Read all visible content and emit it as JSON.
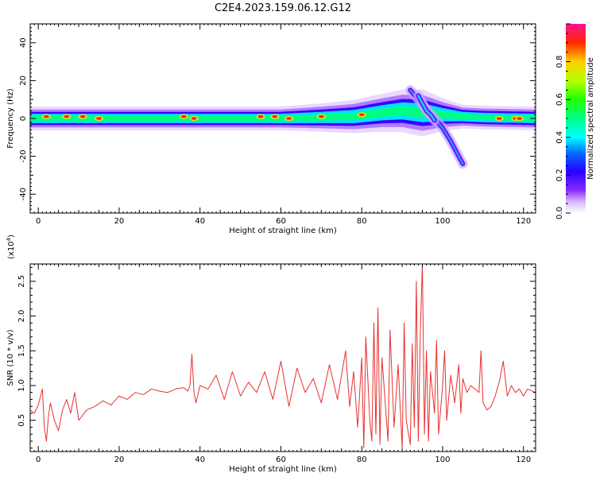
{
  "figure": {
    "title": "C2E4.2023.159.06.12.G12"
  },
  "chart_data": [
    {
      "type": "heatmap",
      "xlabel": "Height of straight line (km)",
      "ylabel": "Frequency (Hz)",
      "xlim": [
        -2,
        123
      ],
      "ylim": [
        -50,
        50
      ],
      "xticks": [
        "0",
        "20",
        "40",
        "60",
        "80",
        "100",
        "120"
      ],
      "yticks": [
        "-40",
        "-20",
        "0",
        "20",
        "40"
      ],
      "colorbar": {
        "label": "Normalized spectral amplitude",
        "range": [
          0,
          1
        ],
        "ticks": [
          "0.0",
          "0.2",
          "0.4",
          "0.6",
          "0.8"
        ]
      },
      "ridge": [
        {
          "x": -1,
          "f": 0,
          "w": 5
        },
        {
          "x": 20,
          "f": 0,
          "w": 5
        },
        {
          "x": 40,
          "f": 0,
          "w": 5
        },
        {
          "x": 60,
          "f": 0,
          "w": 5
        },
        {
          "x": 70,
          "f": 0.5,
          "w": 6
        },
        {
          "x": 78,
          "f": 1,
          "w": 7
        },
        {
          "x": 85,
          "f": 3,
          "w": 8
        },
        {
          "x": 90,
          "f": 4,
          "w": 9
        },
        {
          "x": 95,
          "f": 3,
          "w": 10
        },
        {
          "x": 100,
          "f": 2,
          "w": 7
        },
        {
          "x": 105,
          "f": 1,
          "w": 5
        },
        {
          "x": 110,
          "f": 0.5,
          "w": 5
        },
        {
          "x": 123,
          "f": 0,
          "w": 5
        }
      ],
      "branches": [
        {
          "points": [
            [
              92,
              15
            ],
            [
              94,
              10
            ],
            [
              96,
              5
            ],
            [
              98,
              0
            ],
            [
              100,
              -5
            ],
            [
              102,
              -12
            ],
            [
              104,
              -20
            ],
            [
              105,
              -24
            ]
          ]
        },
        {
          "points": [
            [
              94,
              12
            ],
            [
              95,
              8
            ],
            [
              96,
              4
            ],
            [
              97,
              2
            ],
            [
              98,
              -1
            ]
          ]
        }
      ],
      "hotspots": [
        {
          "x": 2,
          "f": 1
        },
        {
          "x": 7,
          "f": 1
        },
        {
          "x": 11,
          "f": 1
        },
        {
          "x": 15,
          "f": 0
        },
        {
          "x": 36,
          "f": 1
        },
        {
          "x": 38.5,
          "f": 0
        },
        {
          "x": 55,
          "f": 1
        },
        {
          "x": 58.5,
          "f": 1
        },
        {
          "x": 62,
          "f": 0
        },
        {
          "x": 70,
          "f": 1
        },
        {
          "x": 80,
          "f": 2
        },
        {
          "x": 114,
          "f": 0
        },
        {
          "x": 118,
          "f": 0
        },
        {
          "x": 119,
          "f": 0
        }
      ]
    },
    {
      "type": "line",
      "xlabel": "Height of straight line (km)",
      "ylabel": "SNR (10 * v/v)",
      "multiplier": "(x10",
      "multiplier_exp": "4",
      "multiplier_close": ")",
      "xlim": [
        -2,
        123
      ],
      "ylim": [
        0.05,
        2.75
      ],
      "xticks": [
        "0",
        "20",
        "40",
        "60",
        "80",
        "100",
        "120"
      ],
      "yticks": [
        "0.5",
        "1.0",
        "1.5",
        "2.0",
        "2.5"
      ],
      "series": [
        {
          "color": "#e8302f",
          "x": [
            -2,
            -1,
            0,
            1,
            1.5,
            2,
            2.5,
            3,
            4,
            5,
            6,
            7,
            8,
            9,
            10,
            12,
            14,
            16,
            18,
            20,
            22,
            24,
            26,
            28,
            30,
            32,
            34,
            36,
            37,
            37.5,
            38,
            38.5,
            39,
            40,
            42,
            44,
            46,
            48,
            50,
            52,
            54,
            56,
            58,
            60,
            62,
            64,
            66,
            68,
            70,
            72,
            74,
            76,
            77,
            78,
            79,
            80,
            80.5,
            81,
            82,
            82.5,
            83,
            83.5,
            84,
            84.5,
            85,
            86,
            86.5,
            87,
            88,
            89,
            90,
            90.5,
            91,
            92,
            92.5,
            93,
            93.5,
            94,
            94.5,
            95,
            95.5,
            96,
            96.5,
            97,
            98,
            98.5,
            99,
            100,
            100.5,
            101,
            102,
            103,
            104,
            104.5,
            105,
            106,
            107,
            108,
            109,
            109.5,
            110,
            111,
            112,
            113,
            114,
            115,
            116,
            117,
            118,
            119,
            120,
            121,
            123
          ],
          "values": [
            0.65,
            0.6,
            0.72,
            0.95,
            0.4,
            0.2,
            0.55,
            0.75,
            0.5,
            0.35,
            0.65,
            0.8,
            0.6,
            0.9,
            0.5,
            0.65,
            0.7,
            0.78,
            0.72,
            0.85,
            0.8,
            0.9,
            0.87,
            0.95,
            0.92,
            0.9,
            0.95,
            0.97,
            0.92,
            1.0,
            1.45,
            0.9,
            0.75,
            1.0,
            0.95,
            1.15,
            0.8,
            1.2,
            0.85,
            1.05,
            0.9,
            1.2,
            0.8,
            1.35,
            0.7,
            1.25,
            0.9,
            1.1,
            0.75,
            1.3,
            0.8,
            1.5,
            0.7,
            1.2,
            0.4,
            1.4,
            0.1,
            1.7,
            0.5,
            0.2,
            1.9,
            0.3,
            2.12,
            0.15,
            1.4,
            0.6,
            0.2,
            1.8,
            0.4,
            1.3,
            0.1,
            1.9,
            0.5,
            0.15,
            1.6,
            0.4,
            2.5,
            0.2,
            1.8,
            2.75,
            0.3,
            1.5,
            0.2,
            1.2,
            0.6,
            1.65,
            0.3,
            1.0,
            1.5,
            0.5,
            1.15,
            0.75,
            1.3,
            0.6,
            1.1,
            0.9,
            1.0,
            0.95,
            0.9,
            1.5,
            0.75,
            0.65,
            0.7,
            0.85,
            1.05,
            1.35,
            0.85,
            1.0,
            0.9,
            0.95,
            0.85,
            0.95,
            0.9
          ]
        }
      ]
    }
  ]
}
